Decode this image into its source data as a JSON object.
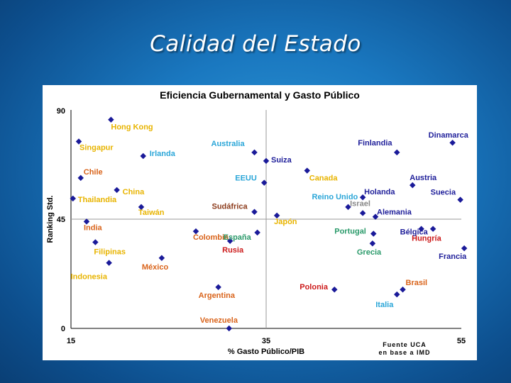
{
  "slide": {
    "title": "Calidad del Estado"
  },
  "colors": {
    "marker": "#1a1a99",
    "label_yellow": "#e8b400",
    "label_blue": "#2ba6d8",
    "label_orange": "#d9631a",
    "label_navy": "#1f1f9a",
    "label_red": "#cc1a1a",
    "label_green": "#2a9a6a",
    "label_gray": "#888888",
    "label_brown": "#8b3a1a",
    "reference_line": "#9a9a9a",
    "background": "#1a78c0"
  },
  "chart_data": {
    "type": "scatter",
    "title": "Eficiencia Gubernamental y Gasto Público",
    "xlabel": "% Gasto Público/PIB",
    "ylabel": "Ranking Std.",
    "xlim": [
      15,
      55
    ],
    "ylim": [
      0,
      90
    ],
    "xticks": [
      "15",
      "35",
      "55"
    ],
    "yticks": [
      "0",
      "45",
      "90"
    ],
    "reference_lines": {
      "x": 35,
      "y": 45
    },
    "grid": false,
    "legend": "none",
    "source_note": [
      "Fuente UCA",
      "en base a IMD"
    ],
    "points": [
      {
        "name": "Hong Kong",
        "x": 19.1,
        "y": 86,
        "color": "yellow"
      },
      {
        "name": "Singapur",
        "x": 15.8,
        "y": 77,
        "color": "yellow"
      },
      {
        "name": "Irlanda",
        "x": 22.4,
        "y": 71,
        "color": "blue"
      },
      {
        "name": "Chile",
        "x": 16.0,
        "y": 62,
        "color": "orange"
      },
      {
        "name": "China",
        "x": 19.7,
        "y": 57,
        "color": "yellow"
      },
      {
        "name": "Thailandia",
        "x": 15.2,
        "y": 53.5,
        "color": "yellow"
      },
      {
        "name": "Taiwán",
        "x": 22.2,
        "y": 50,
        "color": "yellow"
      },
      {
        "name": "India",
        "x": 16.6,
        "y": 44,
        "color": "orange"
      },
      {
        "name": "Filipinas",
        "x": 17.5,
        "y": 35.5,
        "color": "yellow"
      },
      {
        "name": "Indonesia",
        "x": 18.9,
        "y": 27,
        "color": "yellow"
      },
      {
        "name": "México",
        "x": 24.3,
        "y": 29,
        "color": "orange"
      },
      {
        "name": "Colombia",
        "x": 27.8,
        "y": 40,
        "color": "orange"
      },
      {
        "name": "Argentina",
        "x": 30.1,
        "y": 17,
        "color": "orange"
      },
      {
        "name": "Venezuela",
        "x": 31.2,
        "y": 0,
        "color": "orange"
      },
      {
        "name": "Australia",
        "x": 33.8,
        "y": 72.5,
        "color": "blue"
      },
      {
        "name": "Suiza",
        "x": 35.0,
        "y": 69,
        "color": "navy"
      },
      {
        "name": "EEUU",
        "x": 34.8,
        "y": 60,
        "color": "blue"
      },
      {
        "name": "Canada",
        "x": 39.2,
        "y": 65,
        "color": "yellow"
      },
      {
        "name": "Sudáfrica",
        "x": 33.8,
        "y": 48,
        "color": "brown"
      },
      {
        "name": "España",
        "x": 34.1,
        "y": 39.5,
        "color": "green"
      },
      {
        "name": "Japón",
        "x": 36.1,
        "y": 46.5,
        "color": "yellow"
      },
      {
        "name": "Rusia",
        "x": 31.3,
        "y": 36,
        "color": "red"
      },
      {
        "name": "Reino Unido",
        "x": 43.4,
        "y": 50,
        "color": "blue"
      },
      {
        "name": "Israel",
        "x": 44.9,
        "y": 47.5,
        "color": "gray"
      },
      {
        "name": "Holanda",
        "x": 44.9,
        "y": 54,
        "color": "navy"
      },
      {
        "name": "Alemania",
        "x": 46.2,
        "y": 46,
        "color": "navy"
      },
      {
        "name": "Portugal",
        "x": 46.0,
        "y": 39,
        "color": "green"
      },
      {
        "name": "Grecia",
        "x": 45.9,
        "y": 35,
        "color": "green"
      },
      {
        "name": "Finlandia",
        "x": 48.4,
        "y": 72.5,
        "color": "navy"
      },
      {
        "name": "Dinamarca",
        "x": 54.1,
        "y": 76.5,
        "color": "navy"
      },
      {
        "name": "Austria",
        "x": 50.0,
        "y": 59,
        "color": "navy"
      },
      {
        "name": "Suecia",
        "x": 54.9,
        "y": 53,
        "color": "navy"
      },
      {
        "name": "Bélgica",
        "x": 50.9,
        "y": 41,
        "color": "navy"
      },
      {
        "name": "Hungría",
        "x": 52.1,
        "y": 41,
        "color": "red"
      },
      {
        "name": "Francia",
        "x": 55.3,
        "y": 33,
        "color": "navy"
      },
      {
        "name": "Polonia",
        "x": 42.0,
        "y": 16,
        "color": "red"
      },
      {
        "name": "Brasil",
        "x": 49.0,
        "y": 16,
        "color": "orange"
      },
      {
        "name": "Italia",
        "x": 48.4,
        "y": 14,
        "color": "blue"
      }
    ]
  }
}
